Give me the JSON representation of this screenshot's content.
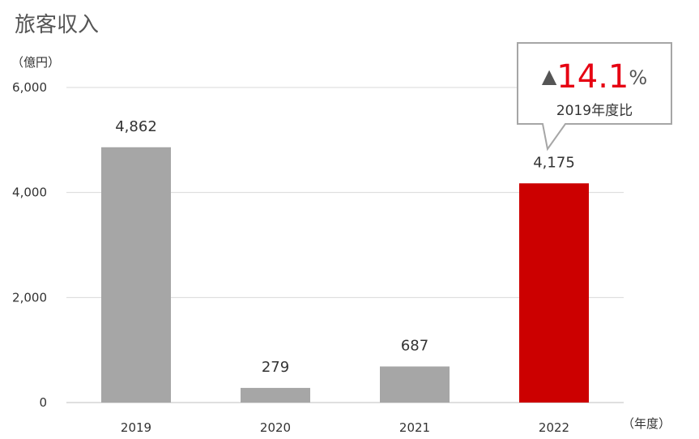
{
  "chart_data": {
    "type": "bar",
    "title": "旅客収入",
    "ylabel": "（億円）",
    "xlabel": "（年度）",
    "categories": [
      "2019",
      "2020",
      "2021",
      "2022"
    ],
    "values": [
      4862,
      279,
      687,
      4175
    ],
    "value_labels": [
      "4,862",
      "279",
      "687",
      "4,175"
    ],
    "ylim": [
      0,
      6000
    ],
    "yticks": [
      0,
      2000,
      4000,
      6000
    ],
    "ytick_labels": [
      "0",
      "2,000",
      "4,000",
      "6,000"
    ],
    "grid": true,
    "colors": {
      "default": "#a6a6a6",
      "highlight": "#cc0000"
    },
    "highlight_index": 3,
    "annotation": {
      "symbol": "▲",
      "value": "14.1",
      "unit": "%",
      "caption": "2019年度比",
      "value_color": "#e60012"
    }
  }
}
